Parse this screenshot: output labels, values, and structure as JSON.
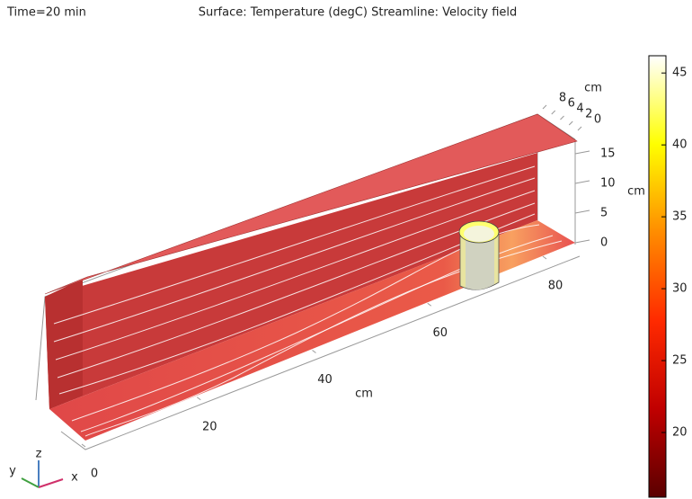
{
  "chart_data": {
    "type": "surface",
    "title": "Time=20 min",
    "subtitle": "Surface: Temperature (degC)  Streamline: Velocity field",
    "x_label": "cm",
    "y_label": "cm",
    "z_label": "cm",
    "xlim": [
      0,
      80
    ],
    "xticks": [
      0,
      20,
      40,
      60,
      80
    ],
    "ylim": [
      0,
      8
    ],
    "yticks": [
      0,
      2,
      4,
      6,
      8
    ],
    "zlim": [
      0,
      15
    ],
    "zticks": [
      0,
      5,
      10,
      15
    ],
    "colorbar": {
      "clim": [
        15.5,
        46.2
      ],
      "ticks": [
        20,
        25,
        30,
        35,
        40,
        45
      ],
      "colors": [
        "#5a0000",
        "#c00000",
        "#ff2a00",
        "#ff8c00",
        "#ffff00",
        "#ffffff"
      ]
    },
    "triad": [
      "x",
      "y",
      "z"
    ]
  }
}
